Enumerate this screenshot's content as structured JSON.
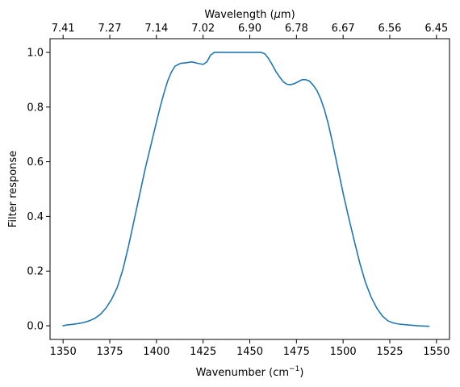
{
  "chart_data": {
    "type": "line",
    "xlabel": "Wavenumber (cm",
    "xlabel_sup": "−1",
    "xlabel_suffix": ")",
    "ylabel": "Filter response",
    "top_xlabel_prefix": "Wavelength (",
    "top_xlabel_mu": "μ",
    "top_xlabel_suffix": "m)",
    "xlim": [
      1343,
      1557
    ],
    "ylim": [
      -0.05,
      1.05
    ],
    "x_ticks": [
      1350,
      1375,
      1400,
      1425,
      1450,
      1475,
      1500,
      1525,
      1550
    ],
    "y_ticks": [
      0.0,
      0.2,
      0.4,
      0.6,
      0.8,
      1.0
    ],
    "y_tick_labels": [
      "0.0",
      "0.2",
      "0.4",
      "0.6",
      "0.8",
      "1.0"
    ],
    "top_ticks": [
      "7.41",
      "7.27",
      "7.14",
      "7.02",
      "6.90",
      "6.78",
      "6.67",
      "6.56",
      "6.45"
    ],
    "line_color": "#1f77b4",
    "series": [
      {
        "x": [
          1350,
          1352,
          1355,
          1358,
          1361,
          1364,
          1367,
          1370,
          1373,
          1376,
          1379,
          1382,
          1385,
          1388,
          1391,
          1394,
          1397,
          1400,
          1402,
          1404,
          1406,
          1408,
          1410,
          1413,
          1416,
          1419,
          1422,
          1425,
          1427,
          1429,
          1431,
          1433,
          1436,
          1440,
          1445,
          1450,
          1453,
          1456,
          1458,
          1460,
          1462,
          1464,
          1466,
          1468,
          1470,
          1472,
          1474,
          1476,
          1478,
          1480,
          1482,
          1484,
          1486,
          1488,
          1490,
          1492,
          1494,
          1496,
          1498,
          1500,
          1503,
          1506,
          1509,
          1512,
          1515,
          1518,
          1521,
          1524,
          1527,
          1530,
          1535,
          1540,
          1546
        ],
        "y": [
          0.0,
          0.003,
          0.005,
          0.008,
          0.012,
          0.018,
          0.027,
          0.042,
          0.065,
          0.097,
          0.14,
          0.205,
          0.29,
          0.385,
          0.48,
          0.575,
          0.66,
          0.745,
          0.8,
          0.85,
          0.895,
          0.928,
          0.95,
          0.96,
          0.962,
          0.965,
          0.96,
          0.956,
          0.965,
          0.99,
          1.0,
          1.0,
          1.0,
          1.0,
          1.0,
          1.0,
          1.0,
          1.0,
          0.995,
          0.978,
          0.955,
          0.93,
          0.91,
          0.892,
          0.883,
          0.882,
          0.886,
          0.893,
          0.9,
          0.9,
          0.895,
          0.88,
          0.86,
          0.83,
          0.79,
          0.74,
          0.68,
          0.615,
          0.55,
          0.485,
          0.395,
          0.31,
          0.228,
          0.158,
          0.105,
          0.065,
          0.036,
          0.018,
          0.01,
          0.006,
          0.003,
          0.0,
          -0.002
        ]
      }
    ]
  }
}
